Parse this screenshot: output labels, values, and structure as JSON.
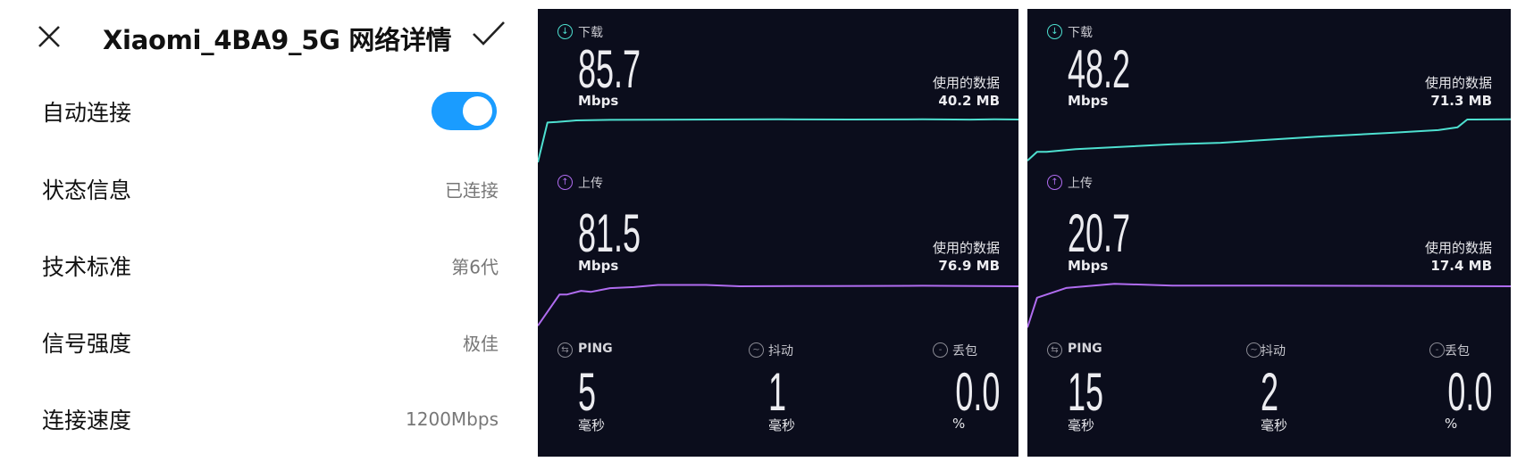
{
  "settings": {
    "title": "Xiaomi_4BA9_5G 网络详情",
    "close_icon": "close-icon",
    "confirm_icon": "check-icon",
    "auto_connect": {
      "label": "自动连接",
      "enabled": true,
      "toggle_color": "#1a9cff"
    },
    "rows": [
      {
        "label": "状态信息",
        "value": "已连接"
      },
      {
        "label": "技术标准",
        "value": "第6代"
      },
      {
        "label": "信号强度",
        "value": "极佳"
      },
      {
        "label": "连接速度",
        "value": "1200Mbps"
      }
    ]
  },
  "colors": {
    "panel_bg": "#0b0d1c",
    "download": "#4ee0d0",
    "upload": "#b06cf0"
  },
  "speedtests": [
    {
      "download": {
        "label": "下载",
        "value": "85.7",
        "unit": "Mbps",
        "used_label": "使用的数据",
        "used_value": "40.2 MB",
        "samples": [
          [
            0,
            5
          ],
          [
            0.02,
            80
          ],
          [
            0.04,
            81
          ],
          [
            0.08,
            84
          ],
          [
            0.15,
            85
          ],
          [
            0.3,
            85.5
          ],
          [
            0.5,
            86
          ],
          [
            0.65,
            85.7
          ],
          [
            0.8,
            86
          ],
          [
            0.9,
            85.5
          ],
          [
            0.95,
            86
          ],
          [
            1,
            85.7
          ]
        ]
      },
      "upload": {
        "label": "上传",
        "value": "81.5",
        "unit": "Mbps",
        "used_label": "使用的数据",
        "used_value": "76.9 MB",
        "samples": [
          [
            0,
            8
          ],
          [
            0.045,
            66
          ],
          [
            0.06,
            66
          ],
          [
            0.09,
            73
          ],
          [
            0.11,
            71
          ],
          [
            0.15,
            78
          ],
          [
            0.2,
            80
          ],
          [
            0.25,
            84
          ],
          [
            0.35,
            84
          ],
          [
            0.42,
            81.5
          ],
          [
            0.6,
            82
          ],
          [
            0.8,
            82.5
          ],
          [
            1,
            81.5
          ]
        ]
      },
      "ping": {
        "label": "PING",
        "value": "5",
        "unit": "毫秒"
      },
      "jitter": {
        "label": "抖动",
        "value": "1",
        "unit": "毫秒"
      },
      "loss": {
        "label": "丢包",
        "value": "0.0",
        "unit": "%"
      }
    },
    {
      "download": {
        "label": "下载",
        "value": "48.2",
        "unit": "Mbps",
        "used_label": "使用的数据",
        "used_value": "71.3 MB",
        "samples": [
          [
            0,
            4.6
          ],
          [
            0.02,
            13.9
          ],
          [
            0.04,
            13.9
          ],
          [
            0.1,
            16.7
          ],
          [
            0.3,
            22
          ],
          [
            0.4,
            23.5
          ],
          [
            0.4,
            23.5
          ],
          [
            0.6,
            30
          ],
          [
            0.75,
            34
          ],
          [
            0.85,
            37
          ],
          [
            0.89,
            40
          ],
          [
            0.91,
            48.2
          ],
          [
            1,
            48.5
          ]
        ]
      },
      "upload": {
        "label": "上传",
        "value": "20.7",
        "unit": "Mbps",
        "used_label": "使用的数据",
        "used_value": "17.4 MB",
        "samples": [
          [
            0,
            1.2
          ],
          [
            0.02,
            15.3
          ],
          [
            0.08,
            19.9
          ],
          [
            0.18,
            21.9
          ],
          [
            0.3,
            21
          ],
          [
            0.5,
            21
          ],
          [
            0.7,
            20.9
          ],
          [
            1,
            20.7
          ]
        ]
      },
      "ping": {
        "label": "PING",
        "value": "15",
        "unit": "毫秒"
      },
      "jitter": {
        "label": "抖动",
        "value": "2",
        "unit": "毫秒"
      },
      "loss": {
        "label": "丢包",
        "value": "0.0",
        "unit": "%"
      }
    }
  ]
}
